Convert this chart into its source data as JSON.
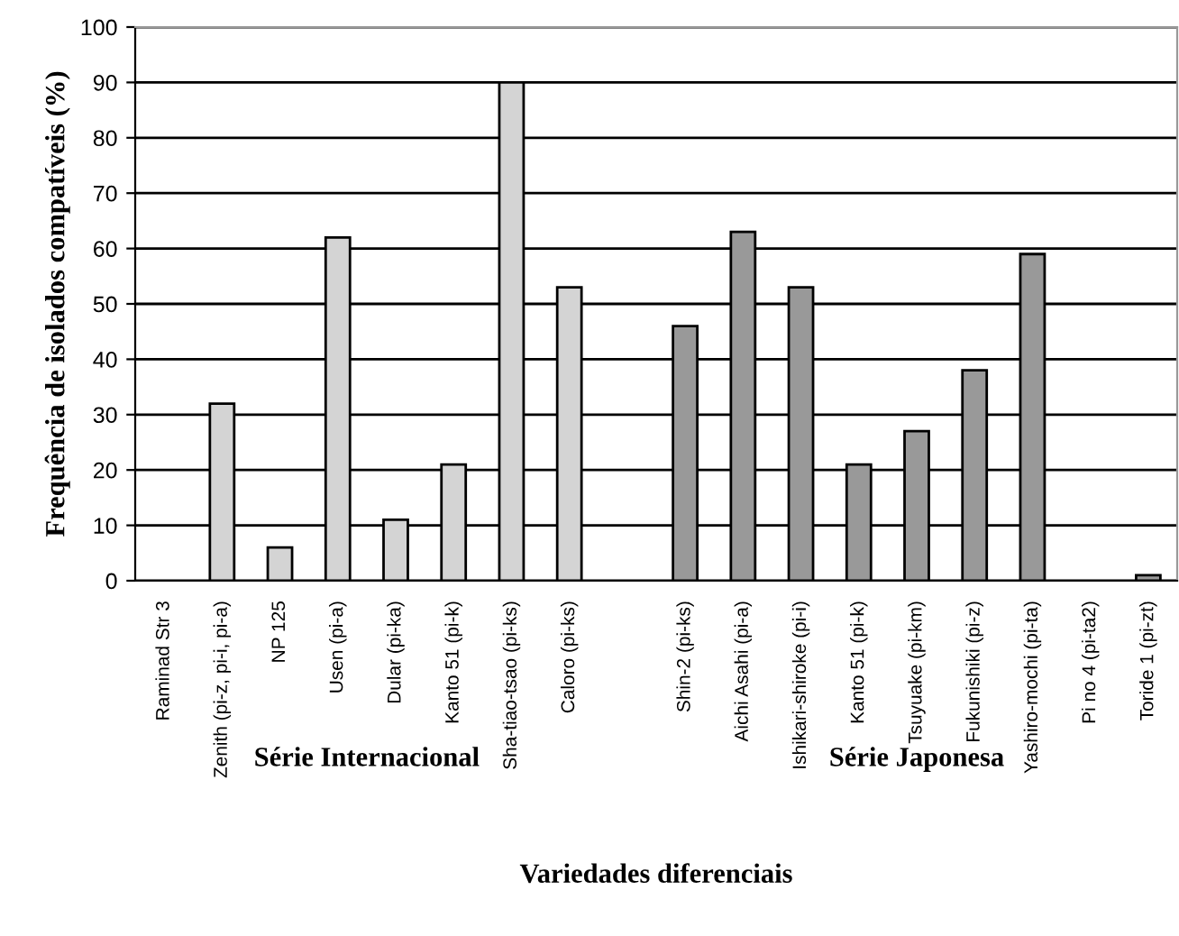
{
  "chart_data": {
    "type": "bar",
    "xlabel": "Variedades diferenciais",
    "ylabel": "Frequência de isolados compatíveis (%)",
    "categories": [
      "Raminad Str 3",
      "Zenith (pi-z, pi-i, pi-a)",
      "NP 125",
      "Usen (pi-a)",
      "Dular (pi-ka)",
      "Kanto 51 (pi-k)",
      "Sha-tiao-tsao (pi-ks)",
      "Caloro (pi-ks)",
      null,
      "Shin-2 (pi-ks)",
      "Aichi Asahi (pi-a)",
      "Ishikari-shiroke (pi-i)",
      "Kanto 51 (pi-k)",
      "Tsuyuake (pi-km)",
      "Fukunishiki (pi-z)",
      "Yashiro-mochi (pi-ta)",
      "Pi no 4 (pi-ta2)",
      "Toride 1 (pi-zt)"
    ],
    "series": [
      {
        "color": "#d4d4d4",
        "values": [
          0,
          32,
          6,
          62,
          11,
          21,
          90,
          53,
          null,
          null,
          null,
          null,
          null,
          null,
          null,
          null,
          null,
          null
        ]
      },
      {
        "color": "#999999",
        "values": [
          null,
          null,
          null,
          null,
          null,
          null,
          null,
          null,
          null,
          46,
          63,
          53,
          21,
          27,
          38,
          59,
          0,
          1
        ]
      }
    ],
    "annotations": [
      "Série Internacional",
      "Série Japonesa"
    ],
    "ylim": [
      0,
      100
    ],
    "yticks": [
      0,
      10,
      20,
      30,
      40,
      50,
      60,
      70,
      80,
      90,
      100
    ],
    "grid": "y",
    "legend": false
  }
}
